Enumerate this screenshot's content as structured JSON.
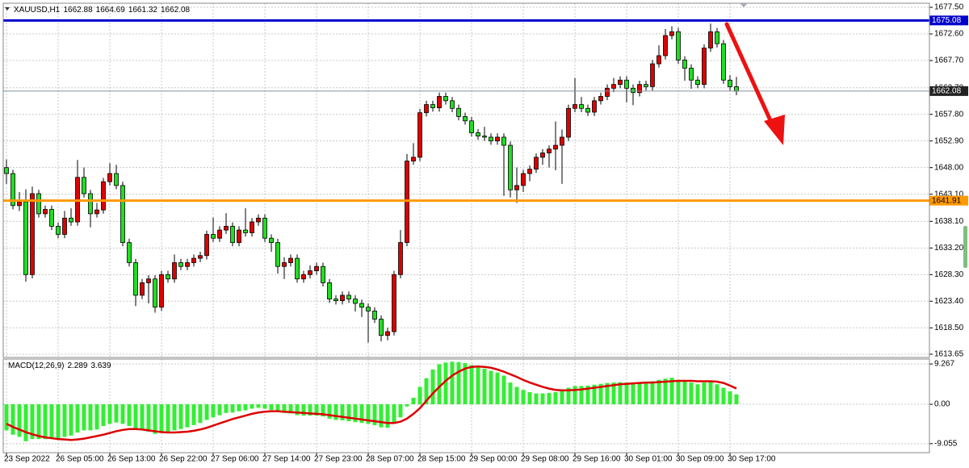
{
  "chart_data": {
    "type": "candlestick",
    "symbol": "XAUUSD,H1",
    "x": [
      "23 Sep 2022",
      null,
      null,
      null,
      null,
      null,
      null,
      null,
      "26 Sep 05:00",
      null,
      null,
      null,
      null,
      null,
      null,
      null,
      "26 Sep 13:00",
      null,
      null,
      null,
      null,
      null,
      null,
      null,
      "26 Sep 22:00",
      null,
      null,
      null,
      null,
      null,
      null,
      null,
      "27 Sep 06:00",
      null,
      null,
      null,
      null,
      null,
      null,
      null,
      "27 Sep 14:00",
      null,
      null,
      null,
      null,
      null,
      null,
      null,
      "27 Sep 23:00",
      null,
      null,
      null,
      null,
      null,
      null,
      null,
      "28 Sep 07:00",
      null,
      null,
      null,
      null,
      null,
      null,
      null,
      "28 Sep 15:00",
      null,
      null,
      null,
      null,
      null,
      null,
      null,
      "29 Sep 00:00",
      null,
      null,
      null,
      null,
      null,
      null,
      null,
      "29 Sep 08:00",
      null,
      null,
      null,
      null,
      null,
      null,
      null,
      "29 Sep 16:00",
      null,
      null,
      null,
      null,
      null,
      null,
      null,
      "30 Sep 01:00",
      null,
      null,
      null,
      null,
      null,
      null,
      null,
      "30 Sep 09:00",
      null,
      null,
      null,
      null,
      null,
      null,
      null,
      "30 Sep 17:00",
      null
    ],
    "open": [
      1648.0,
      1646.9,
      1641.0,
      1641.7,
      1628.3,
      1643.2,
      1639.5,
      1640.3,
      1637.2,
      1635.7,
      1638.7,
      1638.0,
      1646.2,
      1643.2,
      1639.5,
      1640.2,
      1645.4,
      1646.9,
      1644.7,
      1634.2,
      1630.5,
      1624.5,
      1626.8,
      1627.5,
      1622.3,
      1628.3,
      1627.5,
      1630.5,
      1629.8,
      1630.5,
      1631.3,
      1631.8,
      1635.7,
      1635.0,
      1636.5,
      1637.2,
      1634.2,
      1636.5,
      1636.0,
      1638.0,
      1638.7,
      1635.0,
      1634.2,
      1629.8,
      1630.5,
      1631.3,
      1627.5,
      1628.3,
      1629.0,
      1629.8,
      1626.8,
      1623.8,
      1623.5,
      1624.5,
      1623.8,
      1623.0,
      1622.3,
      1621.6,
      1620.1,
      1617.1,
      1617.8,
      1628.3,
      1634.2,
      1649.2,
      1649.9,
      1658.1,
      1659.6,
      1659.0,
      1661.1,
      1660.3,
      1658.9,
      1657.4,
      1656.6,
      1654.4,
      1653.8,
      1653.6,
      1652.9,
      1653.6,
      1652.1,
      1643.9,
      1644.7,
      1646.9,
      1647.7,
      1649.9,
      1650.7,
      1651.4,
      1652.1,
      1653.6,
      1658.9,
      1659.6,
      1658.9,
      1658.2,
      1660.3,
      1661.1,
      1662.6,
      1663.3,
      1664.1,
      1662.6,
      1661.8,
      1663.3,
      1662.9,
      1667.1,
      1668.6,
      1672.3,
      1673.0,
      1667.8,
      1666.3,
      1664.1,
      1663.3,
      1670.0,
      1673.0,
      1670.8,
      1664.1,
      1662.88
    ],
    "high": [
      1649.5,
      1647.6,
      1643.5,
      1644.0,
      1644.5,
      1643.9,
      1641.0,
      1641.0,
      1637.9,
      1640.0,
      1640.5,
      1649.4,
      1648.0,
      1643.9,
      1641.5,
      1646.1,
      1648.8,
      1648.5,
      1645.4,
      1634.9,
      1631.2,
      1627.5,
      1628.2,
      1628.2,
      1629.0,
      1629.0,
      1632.0,
      1631.2,
      1631.2,
      1632.0,
      1632.5,
      1636.4,
      1638.8,
      1637.2,
      1639.6,
      1637.9,
      1637.2,
      1640.5,
      1638.7,
      1639.4,
      1639.4,
      1635.7,
      1634.9,
      1631.5,
      1632.0,
      1632.0,
      1629.0,
      1630.0,
      1630.5,
      1630.5,
      1627.5,
      1624.5,
      1625.2,
      1625.2,
      1624.5,
      1623.7,
      1623.0,
      1622.3,
      1620.8,
      1618.5,
      1629.0,
      1636.5,
      1650.5,
      1652.5,
      1658.8,
      1660.3,
      1660.3,
      1661.8,
      1661.8,
      1661.0,
      1659.6,
      1658.1,
      1657.3,
      1655.1,
      1655.5,
      1654.3,
      1654.3,
      1654.3,
      1652.8,
      1648.0,
      1647.6,
      1648.4,
      1650.6,
      1651.4,
      1652.1,
      1656.5,
      1655.0,
      1659.6,
      1664.5,
      1661.0,
      1659.6,
      1661.0,
      1661.8,
      1663.3,
      1664.5,
      1664.8,
      1664.8,
      1663.3,
      1664.0,
      1664.0,
      1667.8,
      1670.5,
      1673.5,
      1674.0,
      1673.7,
      1668.5,
      1667.0,
      1664.8,
      1670.7,
      1674.5,
      1673.7,
      1671.5,
      1665.0,
      1664.69
    ],
    "low": [
      1645.0,
      1640.3,
      1640.0,
      1627.0,
      1627.6,
      1638.8,
      1638.8,
      1636.5,
      1635.0,
      1635.0,
      1637.3,
      1637.3,
      1642.5,
      1637.0,
      1638.8,
      1639.5,
      1644.7,
      1644.0,
      1633.5,
      1629.8,
      1622.5,
      1623.8,
      1623.0,
      1621.3,
      1621.6,
      1626.8,
      1626.8,
      1629.1,
      1629.1,
      1629.8,
      1630.6,
      1631.1,
      1634.3,
      1634.3,
      1635.8,
      1633.5,
      1633.5,
      1635.3,
      1635.3,
      1637.3,
      1634.3,
      1632.5,
      1628.5,
      1627.5,
      1629.8,
      1626.8,
      1626.8,
      1627.6,
      1628.3,
      1626.1,
      1623.1,
      1622.8,
      1622.8,
      1623.1,
      1621.5,
      1620.5,
      1615.8,
      1619.4,
      1616.0,
      1616.2,
      1617.1,
      1627.6,
      1633.5,
      1648.5,
      1649.2,
      1657.4,
      1658.3,
      1658.3,
      1659.6,
      1658.2,
      1656.7,
      1655.9,
      1653.7,
      1653.1,
      1652.9,
      1652.2,
      1652.2,
      1642.8,
      1642.5,
      1641.5,
      1643.5,
      1645.5,
      1647.0,
      1648.5,
      1648.0,
      1647.5,
      1645.0,
      1652.9,
      1658.2,
      1658.2,
      1657.5,
      1657.5,
      1659.6,
      1660.4,
      1661.9,
      1662.6,
      1660.0,
      1659.5,
      1661.1,
      1662.2,
      1662.2,
      1666.4,
      1667.9,
      1671.6,
      1667.1,
      1664.0,
      1662.5,
      1662.6,
      1662.6,
      1669.3,
      1670.1,
      1663.4,
      1662.2,
      1661.32
    ],
    "close": [
      1646.9,
      1641.0,
      1641.7,
      1628.3,
      1643.2,
      1639.5,
      1640.3,
      1637.2,
      1635.7,
      1638.7,
      1638.0,
      1646.2,
      1643.2,
      1639.5,
      1640.2,
      1645.4,
      1646.9,
      1644.7,
      1634.2,
      1630.5,
      1624.5,
      1626.8,
      1627.5,
      1622.3,
      1628.3,
      1627.5,
      1630.5,
      1629.8,
      1630.5,
      1631.3,
      1631.8,
      1635.7,
      1635.0,
      1636.5,
      1637.2,
      1634.2,
      1636.5,
      1636.0,
      1638.0,
      1638.7,
      1635.0,
      1634.2,
      1629.8,
      1630.5,
      1631.3,
      1627.5,
      1628.3,
      1629.0,
      1629.8,
      1626.8,
      1623.8,
      1623.5,
      1624.5,
      1623.8,
      1623.0,
      1622.3,
      1621.6,
      1620.1,
      1617.1,
      1617.8,
      1628.3,
      1634.2,
      1649.2,
      1649.9,
      1658.1,
      1659.6,
      1659.0,
      1661.1,
      1660.3,
      1658.9,
      1657.4,
      1656.6,
      1654.4,
      1653.8,
      1653.6,
      1652.9,
      1653.6,
      1652.1,
      1643.9,
      1644.7,
      1646.9,
      1647.7,
      1649.9,
      1650.7,
      1651.4,
      1652.1,
      1653.6,
      1658.9,
      1659.6,
      1658.9,
      1658.2,
      1660.3,
      1661.1,
      1662.6,
      1663.3,
      1664.1,
      1662.6,
      1661.8,
      1663.3,
      1662.9,
      1667.1,
      1668.6,
      1672.3,
      1673.0,
      1667.8,
      1666.3,
      1664.1,
      1663.3,
      1670.0,
      1673.0,
      1670.8,
      1664.1,
      1662.88,
      1662.08
    ],
    "up_color": "#dd0000",
    "down_color": "#22dd22",
    "ylim": [
      1613.05,
      1678.25
    ],
    "yticks": [
      {
        "value": 1677.5,
        "label": "1677.50"
      },
      {
        "value": 1672.6,
        "label": "1672.60"
      },
      {
        "value": 1667.7,
        "label": "1667.70"
      },
      {
        "value": 1662.7,
        "label": "1662.70"
      },
      {
        "value": 1657.8,
        "label": "1657.80"
      },
      {
        "value": 1652.9,
        "label": "1652.90"
      },
      {
        "value": 1648,
        "label": "1648.00"
      },
      {
        "value": 1643.1,
        "label": "1643.10"
      },
      {
        "value": 1638.1,
        "label": "1638.10"
      },
      {
        "value": 1633.2,
        "label": "1633.20"
      },
      {
        "value": 1628.3,
        "label": "1628.30"
      },
      {
        "value": 1623.4,
        "label": "1623.40"
      },
      {
        "value": 1618.5,
        "label": "1618.50"
      },
      1613.65
    ],
    "grid": true,
    "levels": [
      {
        "value": 1675.08,
        "color": "#0000cc"
      },
      {
        "value": 1641.91,
        "color": "#ff9900"
      }
    ],
    "price_line_color": "#8090a0",
    "indicator": {
      "type": "macd",
      "label": "MACD(12,26,9)",
      "ylim": [
        -11.13,
        10.4
      ],
      "yticks": [
        9.267,
        {
          "value": 0,
          "label": "0.00"
        },
        -9.055
      ],
      "macd": {
        "color": "#33ee33",
        "values": [
          -6,
          -7,
          -7.5,
          -8.5,
          -8,
          -8,
          -8,
          -8,
          -7.8,
          -7.5,
          -7.2,
          -6.5,
          -6,
          -6,
          -5.8,
          -5,
          -4.5,
          -4.2,
          -4.5,
          -5,
          -5.8,
          -6,
          -6.3,
          -6.8,
          -6.5,
          -6.3,
          -6,
          -5.7,
          -5.3,
          -4.8,
          -4.3,
          -3.6,
          -3,
          -2.5,
          -2,
          -1.9,
          -1.6,
          -1.4,
          -1,
          -0.8,
          -1,
          -1.3,
          -1.8,
          -2,
          -2.1,
          -2.5,
          -2.6,
          -2.6,
          -2.6,
          -2.8,
          -3.3,
          -3.6,
          -3.7,
          -3.9,
          -4.1,
          -4.3,
          -4.5,
          -4.8,
          -5.3,
          -5.4,
          -4.3,
          -3,
          -0.5,
          1.5,
          4,
          6,
          8,
          9.2,
          9.6,
          9.8,
          9.7,
          9.5,
          9,
          8.6,
          8.2,
          7.7,
          7.3,
          6.6,
          5,
          4,
          3.3,
          2.8,
          2.5,
          2.5,
          2.6,
          2.8,
          3,
          3.8,
          4.2,
          4.2,
          4.3,
          4.5,
          4.7,
          4.9,
          5,
          5.1,
          5,
          4.8,
          4.9,
          4.9,
          5.3,
          5.6,
          5.9,
          6.1,
          5.6,
          5.3,
          5,
          4.6,
          5,
          5.4,
          4.6,
          3.8,
          3,
          2.289
        ]
      },
      "signal": {
        "color": "#dd0000",
        "values": [
          -4.5,
          -5.2,
          -5.8,
          -6.4,
          -6.9,
          -7.3,
          -7.6,
          -7.8,
          -8,
          -8.1,
          -8.2,
          -8.1,
          -7.9,
          -7.6,
          -7.3,
          -7,
          -6.6,
          -6.2,
          -5.9,
          -5.7,
          -5.7,
          -5.8,
          -6,
          -6.2,
          -6.4,
          -6.5,
          -6.5,
          -6.4,
          -6.3,
          -6.1,
          -5.8,
          -5.4,
          -4.9,
          -4.4,
          -3.9,
          -3.4,
          -3,
          -2.6,
          -2.2,
          -1.9,
          -1.7,
          -1.6,
          -1.6,
          -1.7,
          -1.8,
          -1.9,
          -2,
          -2.1,
          -2.2,
          -2.3,
          -2.5,
          -2.7,
          -2.9,
          -3.1,
          -3.3,
          -3.5,
          -3.7,
          -3.9,
          -4.1,
          -4.3,
          -4.3,
          -4,
          -3.3,
          -2.2,
          -0.9,
          0.8,
          2.5,
          4,
          5.4,
          6.6,
          7.5,
          8.2,
          8.6,
          8.7,
          8.6,
          8.4,
          8,
          7.5,
          6.9,
          6.3,
          5.6,
          5,
          4.5,
          4,
          3.6,
          3.3,
          3.2,
          3.2,
          3.3,
          3.4,
          3.6,
          3.8,
          4,
          4.2,
          4.4,
          4.6,
          4.7,
          4.8,
          4.9,
          5,
          5,
          5.1,
          5.2,
          5.3,
          5.4,
          5.4,
          5.4,
          5.3,
          5.3,
          5.3,
          5.2,
          4.9,
          4.3,
          3.639
        ]
      }
    }
  }
}
